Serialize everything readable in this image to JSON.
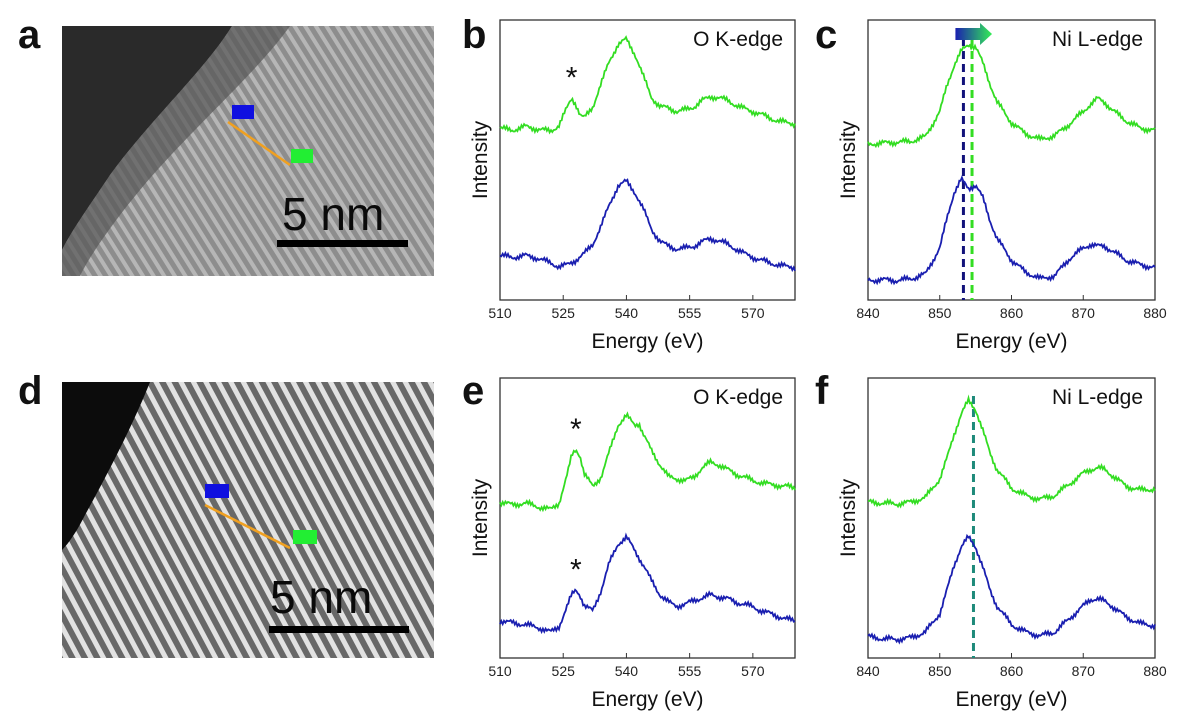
{
  "figure": {
    "panel_labels": [
      "a",
      "b",
      "c",
      "d",
      "e",
      "f"
    ],
    "scale_bar_text": "5 nm",
    "colors": {
      "green": "#33dd22",
      "blue": "#1a1fb0",
      "orange_arrow": "#f0a020",
      "green_marker": "#22ee33",
      "blue_marker": "#1010e0",
      "dashed_navy": "#12127a",
      "dashed_green": "#33dd22",
      "dashed_teal": "#1e8a7a"
    },
    "images": [
      {
        "panel": "a",
        "description_icon": "stem-micrograph-icon",
        "direction_arrow": "blue-to-green"
      },
      {
        "panel": "d",
        "description_icon": "stem-micrograph-icon",
        "direction_arrow": "blue-to-green"
      }
    ]
  },
  "chart_data": [
    {
      "panel": "b",
      "type": "line",
      "edge_label": "O K-edge",
      "xlabel": "Energy (eV)",
      "ylabel": "Intensity",
      "xlim": [
        510,
        580
      ],
      "xticks": [
        510,
        525,
        540,
        555,
        570
      ],
      "star_annotations": [
        {
          "series": 0,
          "x": 527
        }
      ],
      "series": [
        {
          "color": "green",
          "offset": 1.45,
          "x": [
            510,
            513,
            516,
            519,
            522,
            524,
            526,
            527,
            528,
            529,
            530,
            532,
            534,
            536,
            538,
            540,
            542,
            544,
            546,
            548,
            550,
            552,
            554,
            556,
            558,
            560,
            562,
            564,
            566,
            568,
            570,
            572,
            574,
            576,
            578,
            580
          ],
          "y": [
            0.22,
            0.2,
            0.24,
            0.21,
            0.19,
            0.25,
            0.45,
            0.55,
            0.48,
            0.36,
            0.33,
            0.45,
            0.7,
            0.95,
            1.12,
            1.18,
            1.02,
            0.78,
            0.55,
            0.45,
            0.44,
            0.4,
            0.42,
            0.45,
            0.52,
            0.56,
            0.55,
            0.52,
            0.47,
            0.43,
            0.4,
            0.37,
            0.33,
            0.3,
            0.28,
            0.27
          ]
        },
        {
          "color": "blue",
          "offset": 0.0,
          "x": [
            510,
            513,
            516,
            519,
            522,
            524,
            526,
            528,
            530,
            532,
            534,
            536,
            538,
            540,
            542,
            544,
            546,
            548,
            550,
            552,
            554,
            556,
            558,
            560,
            562,
            564,
            566,
            568,
            570,
            572,
            574,
            576,
            578,
            580
          ],
          "y": [
            0.3,
            0.28,
            0.3,
            0.27,
            0.22,
            0.18,
            0.2,
            0.25,
            0.32,
            0.42,
            0.62,
            0.85,
            1.05,
            1.1,
            0.98,
            0.8,
            0.58,
            0.45,
            0.4,
            0.37,
            0.38,
            0.4,
            0.45,
            0.48,
            0.46,
            0.42,
            0.37,
            0.32,
            0.28,
            0.25,
            0.22,
            0.2,
            0.18,
            0.17
          ]
        }
      ]
    },
    {
      "panel": "c",
      "type": "line",
      "edge_label": "Ni L-edge",
      "xlabel": "Energy (eV)",
      "ylabel": "Intensity",
      "xlim": [
        840,
        880
      ],
      "xticks": [
        840,
        850,
        860,
        870,
        880
      ],
      "dashed_lines": [
        {
          "x": 853.3,
          "color": "dashed_navy"
        },
        {
          "x": 854.5,
          "color": "dashed_green"
        }
      ],
      "shift_arrow": "blue-to-green",
      "series": [
        {
          "color": "green",
          "offset": 1.45,
          "x": [
            840,
            842,
            844,
            846,
            848,
            850,
            851,
            852,
            853,
            854,
            855,
            856,
            857,
            858,
            860,
            862,
            864,
            866,
            868,
            870,
            871,
            872,
            873,
            874,
            876,
            878,
            880
          ],
          "y": [
            0.05,
            0.06,
            0.07,
            0.08,
            0.13,
            0.4,
            0.68,
            0.9,
            1.05,
            1.12,
            1.1,
            0.92,
            0.7,
            0.5,
            0.28,
            0.16,
            0.1,
            0.14,
            0.26,
            0.4,
            0.48,
            0.54,
            0.5,
            0.42,
            0.3,
            0.22,
            0.2
          ]
        },
        {
          "color": "blue",
          "offset": 0.0,
          "x": [
            840,
            842,
            844,
            846,
            848,
            850,
            851,
            852,
            853,
            854,
            855,
            856,
            857,
            858,
            860,
            862,
            864,
            866,
            868,
            870,
            871,
            872,
            873,
            874,
            876,
            878,
            880
          ],
          "y": [
            0.03,
            0.04,
            0.03,
            0.05,
            0.1,
            0.38,
            0.7,
            0.98,
            1.12,
            1.02,
            1.06,
            0.92,
            0.68,
            0.48,
            0.25,
            0.12,
            0.05,
            0.08,
            0.26,
            0.38,
            0.42,
            0.4,
            0.4,
            0.35,
            0.25,
            0.2,
            0.17
          ]
        }
      ]
    },
    {
      "panel": "e",
      "type": "line",
      "edge_label": "O K-edge",
      "xlabel": "Energy (eV)",
      "ylabel": "Intensity",
      "xlim": [
        510,
        580
      ],
      "xticks": [
        510,
        525,
        540,
        555,
        570
      ],
      "star_annotations": [
        {
          "series": 0,
          "x": 528
        },
        {
          "series": 1,
          "x": 528
        }
      ],
      "series": [
        {
          "color": "green",
          "offset": 1.35,
          "x": [
            510,
            513,
            516,
            519,
            522,
            524,
            526,
            527,
            528,
            529,
            530,
            532,
            534,
            536,
            538,
            540,
            542,
            543,
            544,
            546,
            548,
            550,
            552,
            554,
            556,
            558,
            560,
            562,
            564,
            566,
            568,
            570,
            572,
            574,
            576,
            578,
            580
          ],
          "y": [
            0.15,
            0.12,
            0.14,
            0.1,
            0.07,
            0.14,
            0.45,
            0.65,
            0.72,
            0.65,
            0.45,
            0.32,
            0.42,
            0.7,
            0.98,
            1.08,
            0.98,
            1.0,
            0.88,
            0.7,
            0.55,
            0.42,
            0.4,
            0.38,
            0.42,
            0.52,
            0.58,
            0.55,
            0.5,
            0.45,
            0.42,
            0.38,
            0.36,
            0.34,
            0.33,
            0.32,
            0.3
          ]
        },
        {
          "color": "blue",
          "offset": 0.0,
          "x": [
            510,
            513,
            516,
            519,
            522,
            524,
            526,
            527,
            528,
            529,
            530,
            532,
            534,
            536,
            538,
            540,
            542,
            544,
            546,
            548,
            550,
            552,
            554,
            556,
            558,
            560,
            562,
            564,
            566,
            568,
            570,
            572,
            574,
            576,
            578,
            580
          ],
          "y": [
            0.22,
            0.2,
            0.18,
            0.15,
            0.1,
            0.16,
            0.38,
            0.5,
            0.56,
            0.5,
            0.38,
            0.33,
            0.55,
            0.85,
            1.05,
            1.12,
            0.98,
            0.82,
            0.65,
            0.5,
            0.42,
            0.38,
            0.4,
            0.44,
            0.47,
            0.5,
            0.48,
            0.46,
            0.42,
            0.4,
            0.37,
            0.33,
            0.3,
            0.27,
            0.24,
            0.22
          ]
        }
      ]
    },
    {
      "panel": "f",
      "type": "line",
      "edge_label": "Ni L-edge",
      "xlabel": "Energy (eV)",
      "ylabel": "Intensity",
      "xlim": [
        840,
        880
      ],
      "xticks": [
        840,
        850,
        860,
        870,
        880
      ],
      "dashed_lines": [
        {
          "x": 854.7,
          "color": "dashed_teal"
        }
      ],
      "series": [
        {
          "color": "green",
          "offset": 1.45,
          "x": [
            840,
            842,
            844,
            846,
            848,
            850,
            851,
            852,
            853,
            854,
            855,
            856,
            857,
            858,
            860,
            862,
            864,
            866,
            868,
            870,
            871,
            872,
            873,
            874,
            876,
            878,
            880
          ],
          "y": [
            0.05,
            0.04,
            0.03,
            0.05,
            0.1,
            0.3,
            0.52,
            0.78,
            1.0,
            1.14,
            1.05,
            0.82,
            0.58,
            0.4,
            0.2,
            0.12,
            0.08,
            0.12,
            0.24,
            0.36,
            0.4,
            0.42,
            0.4,
            0.34,
            0.22,
            0.18,
            0.19
          ]
        },
        {
          "color": "blue",
          "offset": 0.0,
          "x": [
            840,
            842,
            844,
            846,
            848,
            850,
            851,
            852,
            853,
            854,
            855,
            856,
            857,
            858,
            860,
            862,
            864,
            866,
            868,
            870,
            871,
            872,
            873,
            874,
            876,
            878,
            880
          ],
          "y": [
            0.05,
            0.03,
            0.02,
            0.04,
            0.1,
            0.3,
            0.55,
            0.82,
            1.02,
            1.12,
            1.02,
            0.8,
            0.55,
            0.38,
            0.18,
            0.1,
            0.06,
            0.1,
            0.24,
            0.38,
            0.45,
            0.46,
            0.43,
            0.38,
            0.26,
            0.19,
            0.17
          ]
        }
      ]
    }
  ]
}
